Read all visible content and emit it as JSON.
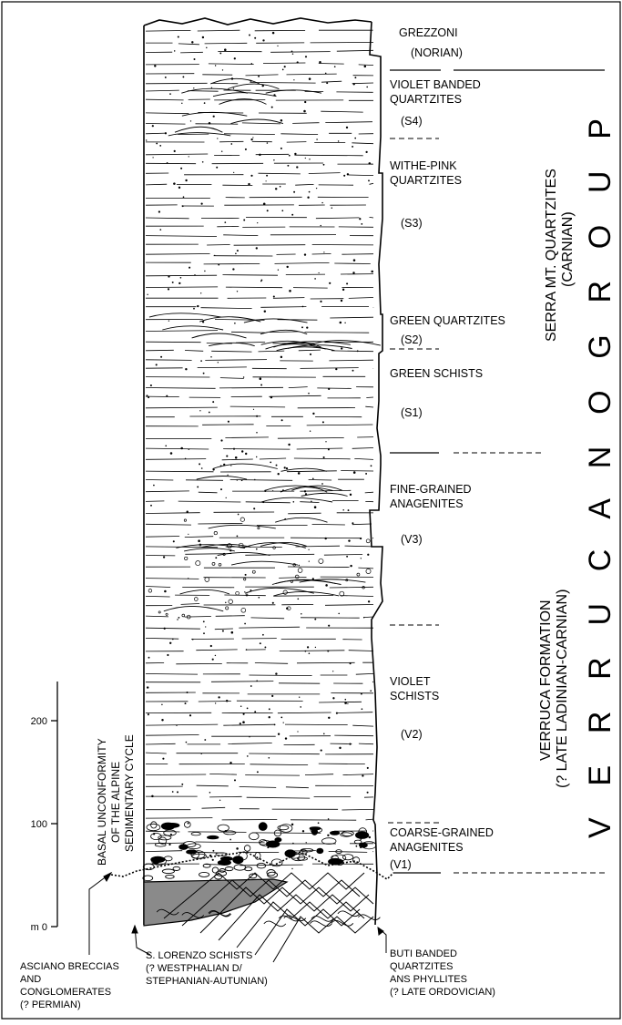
{
  "units": [
    {
      "name": "GREZZONI",
      "code": "(NORIAN)"
    },
    {
      "name": "VIOLET BANDED QUARTZITES",
      "lines": [
        "VIOLET BANDED",
        "QUARTZITES"
      ],
      "code": "(S4)"
    },
    {
      "name": "WITHE-PINK QUARTZITES",
      "lines": [
        "WITHE-PINK",
        "QUARTZITES"
      ],
      "code": "(S3)"
    },
    {
      "name": "GREEN QUARTZITES",
      "lines": [
        "GREEN QUARTZITES"
      ],
      "code": "(S2)"
    },
    {
      "name": "GREEN SCHISTS",
      "lines": [
        "GREEN SCHISTS"
      ],
      "code": "(S1)"
    },
    {
      "name": "FINE-GRAINED ANAGENITES",
      "lines": [
        "FINE-GRAINED",
        "ANAGENITES"
      ],
      "code": "(V3)"
    },
    {
      "name": "VIOLET SCHISTS",
      "lines": [
        "VIOLET",
        "SCHISTS"
      ],
      "code": "(V2)"
    },
    {
      "name": "COARSE-GRAINED ANAGENITES",
      "lines": [
        "COARSE-GRAINED",
        "ANAGENITES"
      ],
      "code": "(V1)"
    }
  ],
  "group_label": "V E R R U C A N O   G R O U P",
  "serra": {
    "line1": "SERRA MT. QUARTZITES",
    "line2": "(CARNIAN)"
  },
  "verruca": {
    "line1": "VERRUCA FORMATION",
    "line2": "(? LATE LADINIAN-CARNIAN)"
  },
  "unconformity": {
    "line1": "BASAL UNCONFORMITY",
    "line2": "OF THE ALPINE",
    "line3": "SEDIMENTARY CYCLE"
  },
  "scale": {
    "ticks": [
      {
        "value": 200,
        "label": "200"
      },
      {
        "value": 100,
        "label": "100"
      },
      {
        "value": 0,
        "label": "m 0"
      }
    ]
  },
  "basement": [
    {
      "lines": [
        "ASCIANO BRECCIAS",
        "AND",
        "CONGLOMERATES",
        "(? PERMIAN)"
      ]
    },
    {
      "lines": [
        "S. LORENZO SCHISTS",
        "(? WESTPHALIAN D/",
        "STEPHANIAN-AUTUNIAN)"
      ]
    },
    {
      "lines": [
        "BUTI BANDED",
        "QUARTZITES",
        "ANS PHYLLITES",
        "(? LATE ORDOVICIAN)"
      ]
    }
  ]
}
